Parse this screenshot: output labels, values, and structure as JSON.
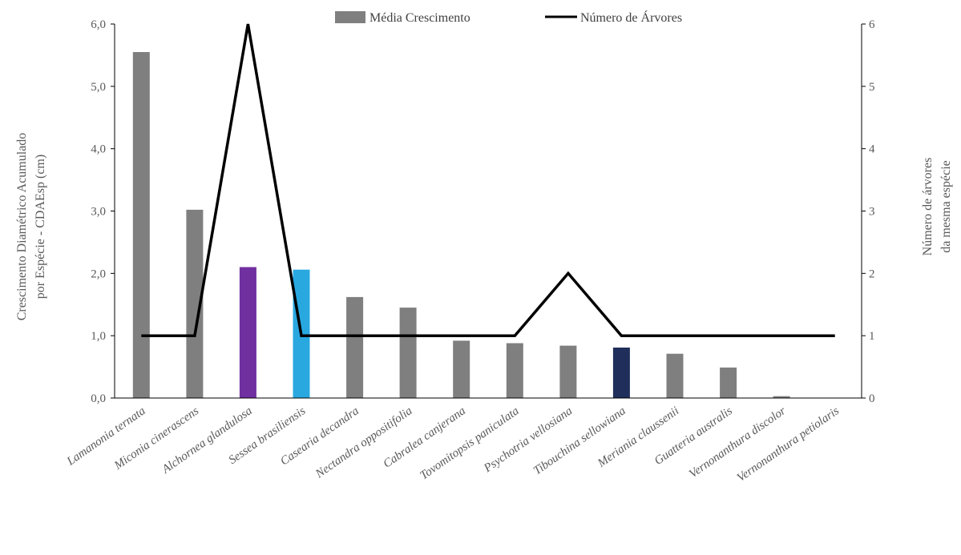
{
  "chart_data": {
    "type": "bar+line",
    "categories": [
      "Lamanonia ternata",
      "Miconia cinerascens",
      "Alchornea glandulosa",
      "Sessea brasiliensis",
      "Casearia decandra",
      "Nectandra oppositifolia",
      "Cabralea canjerana",
      "Tovomitopsis paniculata",
      "Psychotria vellosiana",
      "Tibouchina sellowiana",
      "Meriania claussenii",
      "Guatteria australis",
      "Vernonanthura discolor",
      "Vernonanthura petiolaris"
    ],
    "series": [
      {
        "name": "Média Crescimento",
        "kind": "bar",
        "axis": "left",
        "values": [
          5.55,
          3.02,
          2.1,
          2.06,
          1.62,
          1.45,
          0.92,
          0.88,
          0.84,
          0.81,
          0.71,
          0.49,
          0.03,
          0.0
        ],
        "colors": [
          "#7f7f7f",
          "#7f7f7f",
          "#7030a0",
          "#29a8e0",
          "#7f7f7f",
          "#7f7f7f",
          "#7f7f7f",
          "#7f7f7f",
          "#7f7f7f",
          "#1f2e5a",
          "#7f7f7f",
          "#7f7f7f",
          "#7f7f7f",
          "#7f7f7f"
        ]
      },
      {
        "name": "Número de Árvores",
        "kind": "line",
        "axis": "right",
        "color": "#000000",
        "values": [
          1,
          1,
          6,
          1,
          1,
          1,
          1,
          1,
          2,
          1,
          1,
          1,
          1,
          1
        ]
      }
    ],
    "ylabel_lines": [
      "Crescimento Diamétrico Acumulado",
      "por Espécie - CDAEsp (cm)"
    ],
    "y2label_lines": [
      "Número de árvores",
      "da mesma espécie"
    ],
    "ylim": [
      0,
      6
    ],
    "y_ticks": [
      "0,0",
      "1,0",
      "2,0",
      "3,0",
      "4,0",
      "5,0",
      "6,0"
    ],
    "y2lim": [
      0,
      6
    ],
    "y2_ticks": [
      "0",
      "1",
      "2",
      "3",
      "4",
      "5",
      "6"
    ],
    "legend_position": "top-center",
    "grid": false
  }
}
